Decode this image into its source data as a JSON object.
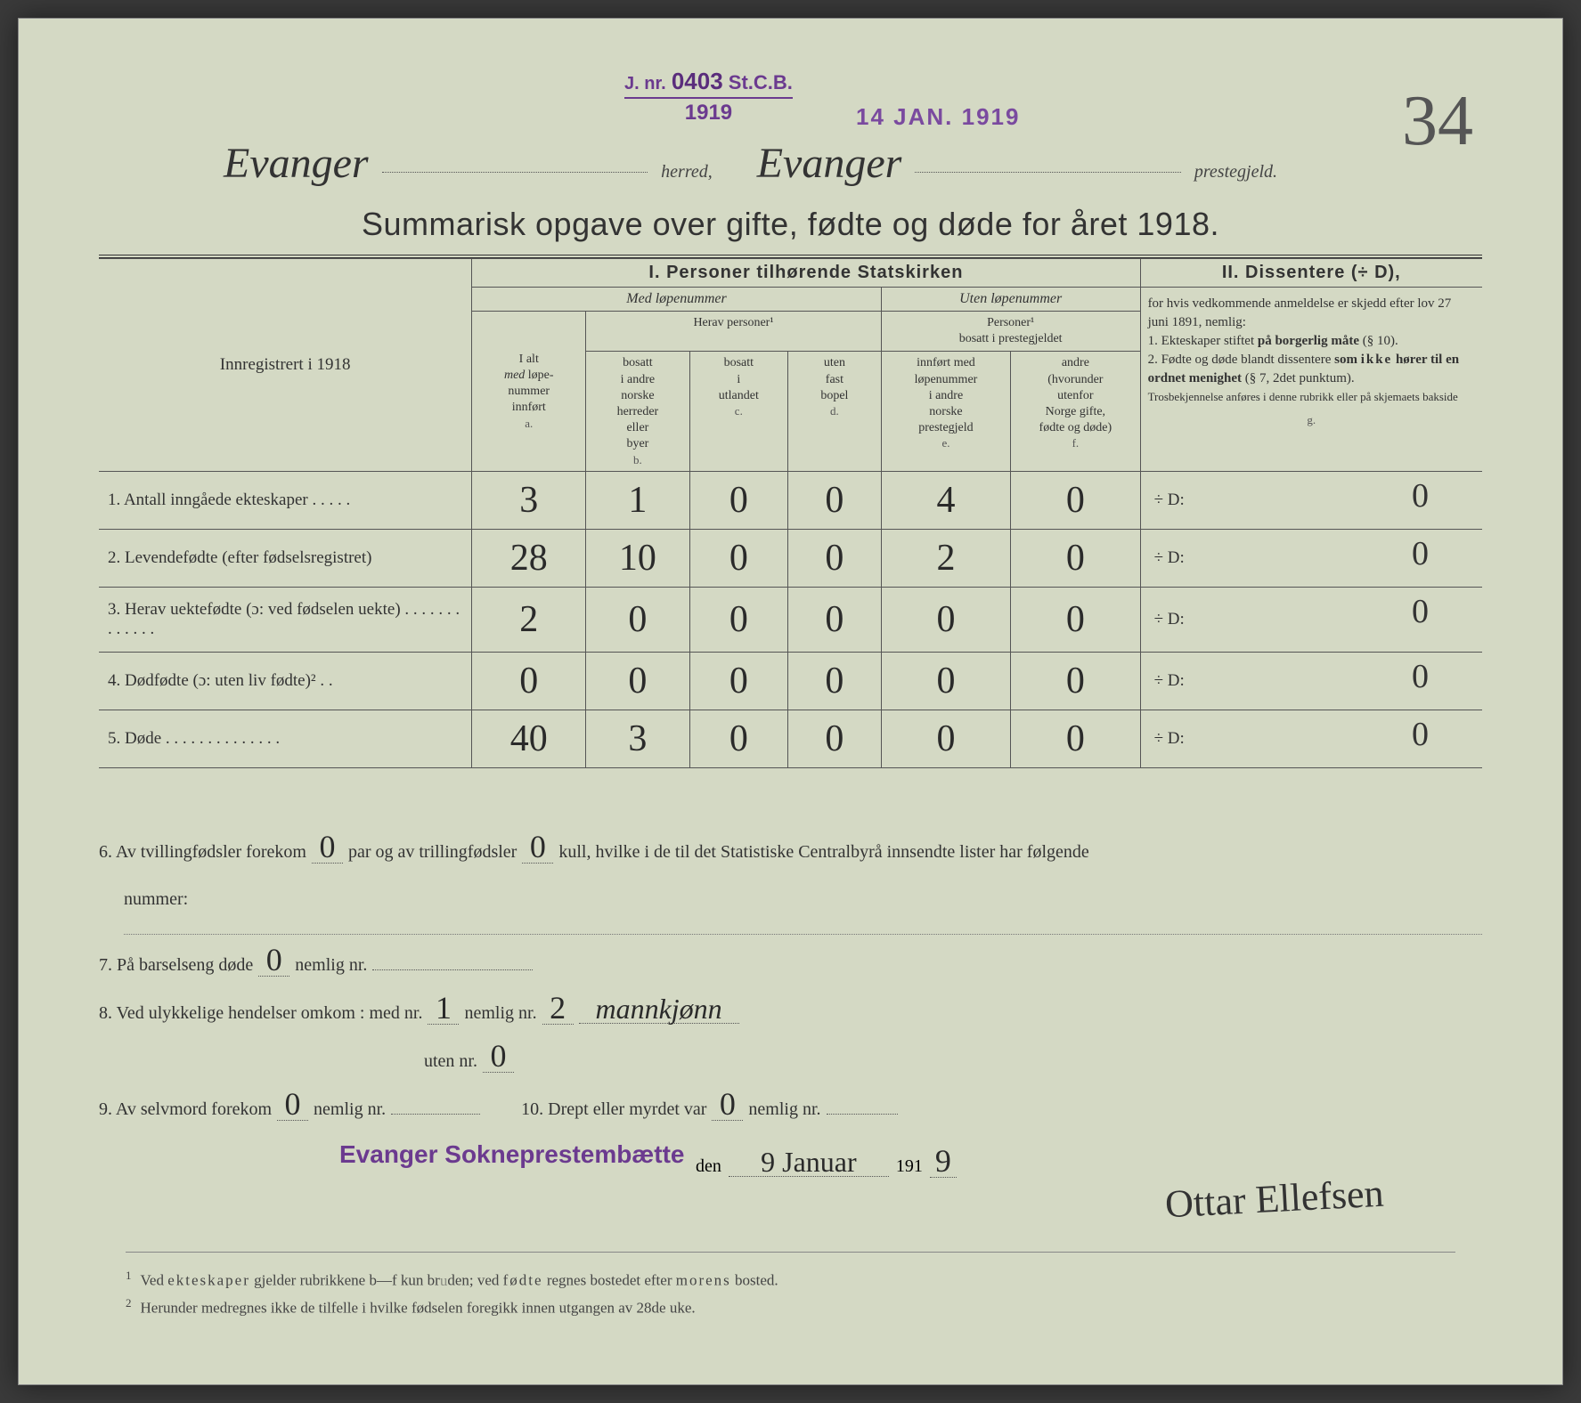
{
  "stamps": {
    "journal": {
      "label": "J. nr.",
      "number": "0403",
      "suffix": "St.C.B.",
      "year": "1919"
    },
    "received_date": "14 JAN. 1919",
    "parish_office": "Evanger Sokneprestembætte"
  },
  "page_number": "34",
  "header": {
    "herred": "Evanger",
    "herred_label": "herred,",
    "prestegjeld": "Evanger",
    "prestegjeld_label": "prestegjeld."
  },
  "title": "Summarisk opgave over gifte, fødte og døde for året 1918.",
  "table": {
    "left_header": "Innregistrert i 1918",
    "section1_title": "I.  Personer tilhørende Statskirken",
    "section2_title": "II.  Dissentere (÷ D),",
    "med_lopenummer": "Med løpenummer",
    "uten_lopenummer": "Uten løpenummer",
    "herav_personer": "Herav personer¹",
    "personer_bosatt": "Personer¹ bosatt i prestegjeldet",
    "col_a": {
      "label": "I alt med løpe-nummer innført",
      "letter": "a."
    },
    "col_b": {
      "label": "bosatt i andre norske herreder eller byer",
      "letter": "b."
    },
    "col_c": {
      "label": "bosatt i utlandet",
      "letter": "c."
    },
    "col_d": {
      "label": "uten fast bopel",
      "letter": "d."
    },
    "col_e": {
      "label": "innført med løpenummer i andre norske prestegjeld",
      "letter": "e."
    },
    "col_f": {
      "label": "andre (hvorunder utenfor Norge gifte, fødte og døde)",
      "letter": "f."
    },
    "col_g": {
      "letter": "g."
    },
    "dissenter_info": "for hvis vedkommende anmeldelse er skjedd efter lov 27 juni 1891, nemlig: 1. Ekteskaper stiftet på borgerlig måte (§ 10). 2. Fødte og døde blandt dissentere som ikke hører til en ordnet menighet (§ 7, 2det punktum). Trosbekjennelse anføres i denne rubrikk eller på skjemaets bakside",
    "rows": [
      {
        "label": "1. Antall inngåede ekteskaper . . . . .",
        "a": "3",
        "b": "1",
        "c": "0",
        "d": "0",
        "e": "4",
        "f": "0",
        "g": "0",
        "g_prefix": "÷ D:"
      },
      {
        "label": "2. Levendefødte (efter fødselsregistret)",
        "a": "28",
        "b": "10",
        "c": "0",
        "d": "0",
        "e": "2",
        "f": "0",
        "g": "0",
        "g_prefix": "÷ D:"
      },
      {
        "label": "3. Herav uektefødte (ɔ: ved fødselen uekte) . . . . . . . . . . . . .",
        "a": "2",
        "b": "0",
        "c": "0",
        "d": "0",
        "e": "0",
        "f": "0",
        "g": "0",
        "g_prefix": "÷ D:"
      },
      {
        "label": "4. Dødfødte (ɔ: uten liv fødte)² . .",
        "a": "0",
        "b": "0",
        "c": "0",
        "d": "0",
        "e": "0",
        "f": "0",
        "g": "0",
        "g_prefix": "÷ D:"
      },
      {
        "label": "5. Døde . . . . . . . . . . . . . .",
        "a": "40",
        "b": "3",
        "c": "0",
        "d": "0",
        "e": "0",
        "f": "0",
        "g": "0",
        "g_prefix": "÷ D:"
      }
    ]
  },
  "lower": {
    "q6_a": "6. Av tvillingfødsler forekom",
    "q6_val1": "0",
    "q6_b": "par og av trillingfødsler",
    "q6_val2": "0",
    "q6_c": "kull, hvilke i de til det Statistiske Centralbyrå innsendte lister har følgende",
    "q6_d": "nummer:",
    "q7_a": "7. På barselseng døde",
    "q7_val": "0",
    "q7_b": "nemlig nr.",
    "q8_a": "8. Ved ulykkelige hendelser omkom :  med nr.",
    "q8_val1": "1",
    "q8_b": "nemlig nr.",
    "q8_val2": "2",
    "q8_note": "mannkjønn",
    "q8_c": "uten nr.",
    "q8_val3": "0",
    "q9_a": "9. Av selvmord forekom",
    "q9_val": "0",
    "q9_b": "nemlig nr.",
    "q10_a": "10.  Drept eller myrdet var",
    "q10_val": "0",
    "q10_b": "nemlig nr."
  },
  "signature": {
    "den_label": "den",
    "date": "9 Januar",
    "year_prefix": "191",
    "year_digit": "9",
    "name": "Ottar Ellefsen"
  },
  "footnotes": {
    "f1": "Ved ekteskaper gjelder rubrikkene b—f kun bruden; ved fødte regnes bostedet efter morens bosted.",
    "f2": "Herunder medregnes ikke de tilfelle i hvilke fødselen foregikk innen utgangen av 28de uke."
  },
  "colors": {
    "paper": "#d4d9c4",
    "ink": "#333333",
    "stamp_purple": "#6b3a8f",
    "handwriting": "#2a2a2a"
  }
}
